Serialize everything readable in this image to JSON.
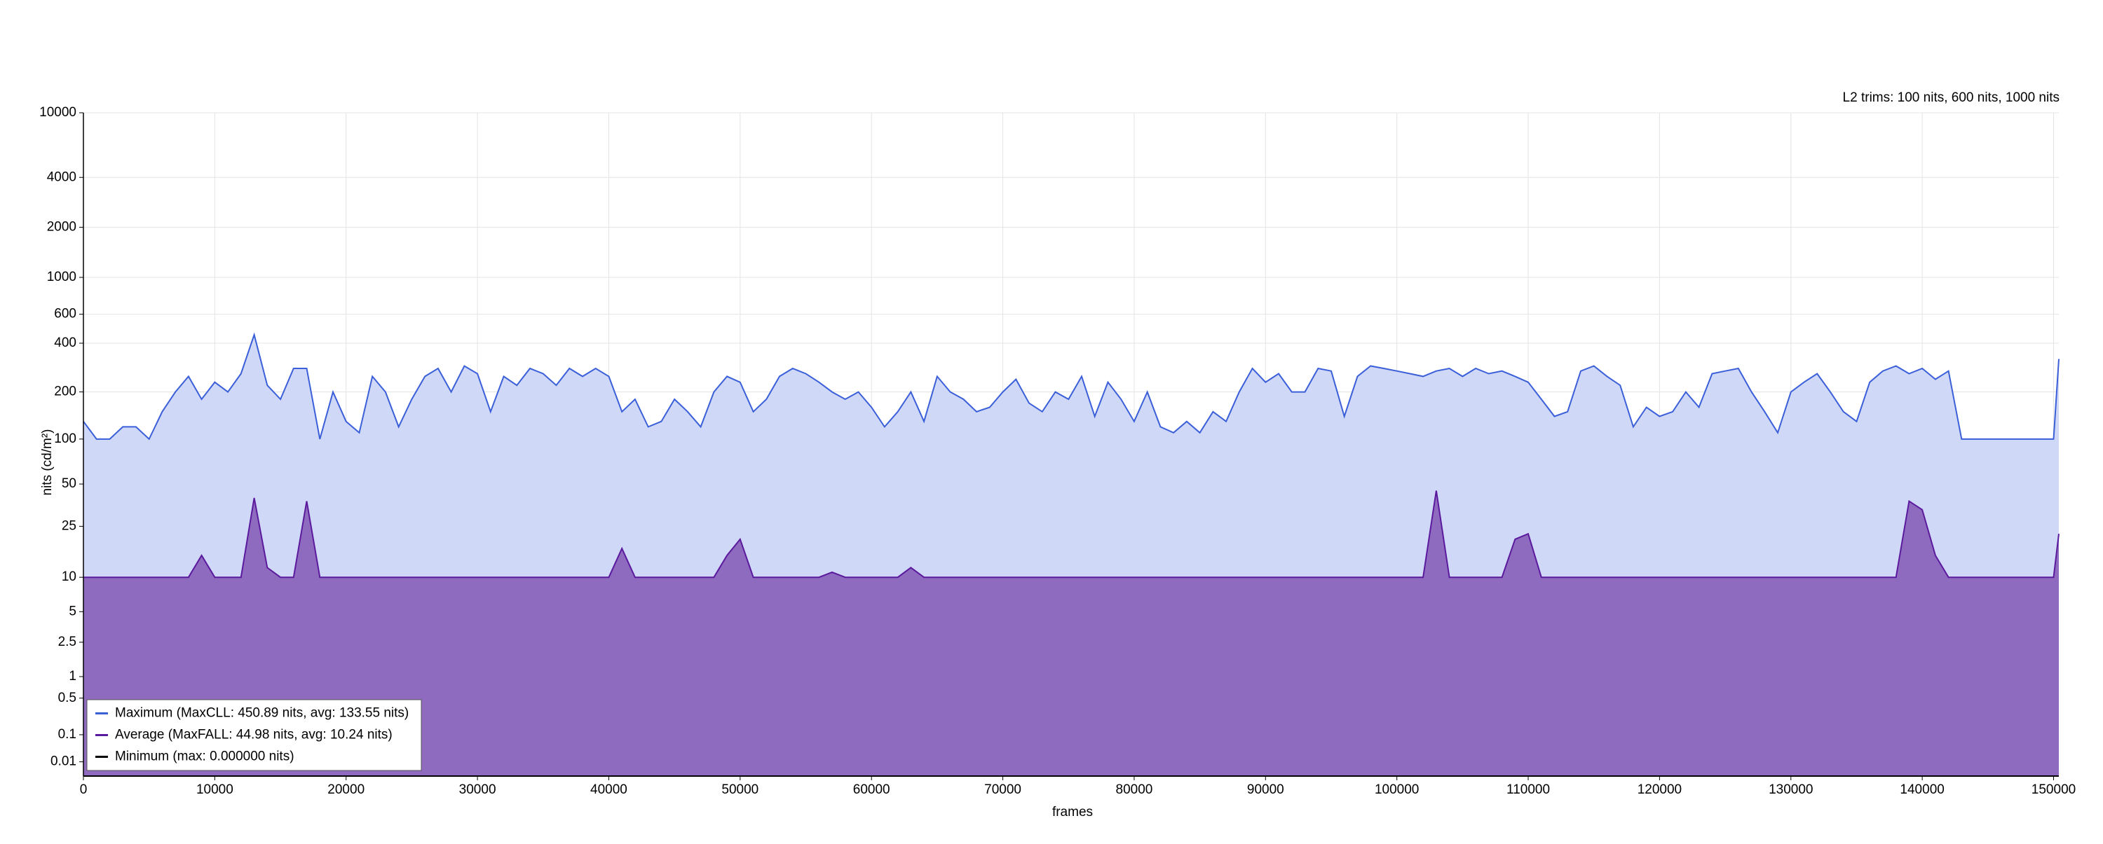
{
  "chart_data": {
    "type": "area",
    "annotation": "L2 trims: 100 nits, 600 nits, 1000 nits",
    "x_label": "frames",
    "y_label": "nits (cd/m²)",
    "y_scale": "pq",
    "grid": true,
    "legend": "lower left",
    "xlim": [
      0,
      150400
    ],
    "ylim": [
      0,
      10000
    ],
    "xticks": [
      0,
      10000,
      20000,
      30000,
      40000,
      50000,
      60000,
      70000,
      80000,
      90000,
      100000,
      110000,
      120000,
      130000,
      140000,
      150000
    ],
    "yticks": [
      0.01,
      0.1,
      0.5,
      1,
      2.5,
      5,
      10,
      25,
      50,
      100,
      200,
      400,
      600,
      1000,
      2000,
      4000,
      10000
    ],
    "x": [
      0,
      1000,
      2000,
      3000,
      4000,
      5000,
      6000,
      7000,
      8000,
      9000,
      10000,
      11000,
      12000,
      13000,
      14000,
      15000,
      16000,
      17000,
      18000,
      19000,
      20000,
      21000,
      22000,
      23000,
      24000,
      25000,
      26000,
      27000,
      28000,
      29000,
      30000,
      31000,
      32000,
      33000,
      34000,
      35000,
      36000,
      37000,
      38000,
      39000,
      40000,
      41000,
      42000,
      43000,
      44000,
      45000,
      46000,
      47000,
      48000,
      49000,
      50000,
      51000,
      52000,
      53000,
      54000,
      55000,
      56000,
      57000,
      58000,
      59000,
      60000,
      61000,
      62000,
      63000,
      64000,
      65000,
      66000,
      67000,
      68000,
      69000,
      70000,
      71000,
      72000,
      73000,
      74000,
      75000,
      76000,
      77000,
      78000,
      79000,
      80000,
      81000,
      82000,
      83000,
      84000,
      85000,
      86000,
      87000,
      88000,
      89000,
      90000,
      91000,
      92000,
      93000,
      94000,
      95000,
      96000,
      97000,
      98000,
      99000,
      100000,
      101000,
      102000,
      103000,
      104000,
      105000,
      106000,
      107000,
      108000,
      109000,
      110000,
      111000,
      112000,
      113000,
      114000,
      115000,
      116000,
      117000,
      118000,
      119000,
      120000,
      121000,
      122000,
      123000,
      124000,
      125000,
      126000,
      127000,
      128000,
      129000,
      130000,
      131000,
      132000,
      133000,
      134000,
      135000,
      136000,
      137000,
      138000,
      139000,
      140000,
      141000,
      142000,
      143000,
      144000,
      145000,
      146000,
      147000,
      148000,
      149000,
      150000,
      150400
    ],
    "series": [
      {
        "name": "Maximum (MaxCLL: 450.89 nits, avg: 133.55 nits)",
        "color": "#3a5fd9",
        "fill_color": "#d0d8f7",
        "values": [
          130,
          100,
          100,
          120,
          120,
          100,
          150,
          200,
          250,
          180,
          230,
          200,
          260,
          450,
          220,
          180,
          280,
          280,
          100,
          200,
          130,
          110,
          250,
          200,
          120,
          180,
          250,
          280,
          200,
          290,
          260,
          150,
          250,
          220,
          280,
          260,
          220,
          280,
          250,
          280,
          250,
          150,
          180,
          120,
          130,
          180,
          150,
          120,
          200,
          250,
          230,
          150,
          180,
          250,
          280,
          260,
          230,
          200,
          180,
          200,
          160,
          120,
          150,
          200,
          130,
          250,
          200,
          180,
          150,
          160,
          200,
          240,
          170,
          150,
          200,
          180,
          250,
          140,
          230,
          180,
          130,
          200,
          120,
          110,
          130,
          110,
          150,
          130,
          200,
          280,
          230,
          260,
          200,
          200,
          280,
          270,
          140,
          250,
          290,
          280,
          270,
          260,
          250,
          270,
          280,
          250,
          280,
          260,
          270,
          250,
          230,
          180,
          140,
          150,
          270,
          290,
          250,
          220,
          120,
          160,
          140,
          150,
          200,
          160,
          260,
          270,
          280,
          200,
          150,
          110,
          200,
          230,
          260,
          200,
          150,
          130,
          230,
          270,
          290,
          260,
          280,
          240,
          270,
          100,
          100,
          100,
          100,
          100,
          100,
          100,
          100,
          320
        ]
      },
      {
        "name": "Average (MaxFALL: 44.98 nits, avg: 10.24 nits)",
        "color": "#5b1a9e",
        "fill_color": "#8e6bbf",
        "values": [
          10,
          10,
          10,
          10,
          10,
          10,
          10,
          10,
          10,
          15,
          10,
          10,
          10,
          40,
          12,
          10,
          10,
          38,
          10,
          10,
          10,
          10,
          10,
          10,
          10,
          10,
          10,
          10,
          10,
          10,
          10,
          10,
          10,
          10,
          10,
          10,
          10,
          10,
          10,
          10,
          10,
          17,
          10,
          10,
          10,
          10,
          10,
          10,
          10,
          15,
          20,
          10,
          10,
          10,
          10,
          10,
          10,
          11,
          10,
          10,
          10,
          10,
          10,
          12,
          10,
          10,
          10,
          10,
          10,
          10,
          10,
          10,
          10,
          10,
          10,
          10,
          10,
          10,
          10,
          10,
          10,
          10,
          10,
          10,
          10,
          10,
          10,
          10,
          10,
          10,
          10,
          10,
          10,
          10,
          10,
          10,
          10,
          10,
          10,
          10,
          10,
          10,
          10,
          45,
          10,
          10,
          10,
          10,
          10,
          20,
          22,
          10,
          10,
          10,
          10,
          10,
          10,
          10,
          10,
          10,
          10,
          10,
          10,
          10,
          10,
          10,
          10,
          10,
          10,
          10,
          10,
          10,
          10,
          10,
          10,
          10,
          10,
          10,
          10,
          38,
          33,
          15,
          10,
          10,
          10,
          10,
          10,
          10,
          10,
          10,
          10,
          22
        ]
      },
      {
        "name": "Minimum (max: 0.000000 nits)",
        "color": "#000000",
        "values": [
          0,
          0,
          0,
          0,
          0,
          0,
          0,
          0,
          0,
          0,
          0,
          0,
          0,
          0,
          0,
          0,
          0,
          0,
          0,
          0,
          0,
          0,
          0,
          0,
          0,
          0,
          0,
          0,
          0,
          0,
          0,
          0,
          0,
          0,
          0,
          0,
          0,
          0,
          0,
          0,
          0,
          0,
          0,
          0,
          0,
          0,
          0,
          0,
          0,
          0,
          0,
          0,
          0,
          0,
          0,
          0,
          0,
          0,
          0,
          0,
          0,
          0,
          0,
          0,
          0,
          0,
          0,
          0,
          0,
          0,
          0,
          0,
          0,
          0,
          0,
          0,
          0,
          0,
          0,
          0,
          0,
          0,
          0,
          0,
          0,
          0,
          0,
          0,
          0,
          0,
          0,
          0,
          0,
          0,
          0,
          0,
          0,
          0,
          0,
          0,
          0,
          0,
          0,
          0,
          0,
          0,
          0,
          0,
          0,
          0,
          0,
          0,
          0,
          0,
          0,
          0,
          0,
          0,
          0,
          0,
          0,
          0,
          0,
          0,
          0,
          0,
          0,
          0,
          0,
          0,
          0,
          0,
          0,
          0,
          0,
          0,
          0,
          0,
          0,
          0,
          0,
          0,
          0,
          0,
          0,
          0,
          0,
          0,
          0,
          0,
          0,
          0
        ]
      }
    ]
  }
}
